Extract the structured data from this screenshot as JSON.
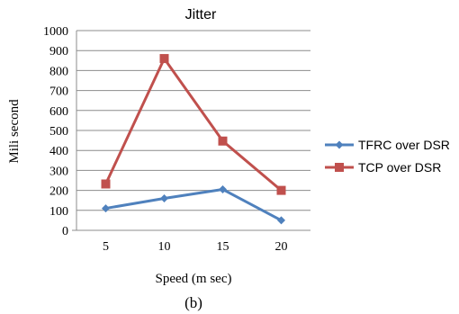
{
  "chart_data": {
    "type": "line",
    "title": "Jitter",
    "xlabel": "Speed (m sec)",
    "ylabel": "Mili second",
    "categories": [
      "5",
      "10",
      "15",
      "20"
    ],
    "ylim": [
      0,
      1000
    ],
    "yticks": [
      "0",
      "100",
      "200",
      "300",
      "400",
      "500",
      "600",
      "700",
      "800",
      "900",
      "1000"
    ],
    "grid": true,
    "legend_position": "right",
    "series": [
      {
        "name": "TFRC over DSR",
        "values": [
          110,
          160,
          205,
          50
        ],
        "color": "#4f81bd",
        "marker": "diamond"
      },
      {
        "name": "TCP over DSR",
        "values": [
          232,
          860,
          447,
          200
        ],
        "color": "#c0504d",
        "marker": "square"
      }
    ]
  },
  "caption": "(b)"
}
